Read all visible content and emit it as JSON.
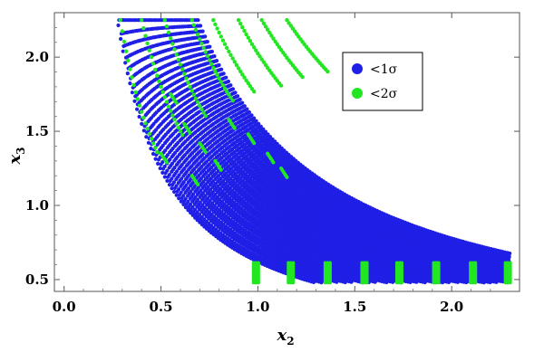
{
  "chart_data": {
    "type": "scatter",
    "xlabel": {
      "main": "x",
      "sub": "2"
    },
    "ylabel": {
      "main": "x",
      "sub": "3"
    },
    "xlim": [
      -0.05,
      2.35
    ],
    "ylim": [
      0.42,
      2.3
    ],
    "x_ticks": [
      {
        "value": 0.0,
        "label": "0.0"
      },
      {
        "value": 0.5,
        "label": "0.5"
      },
      {
        "value": 1.0,
        "label": "1.0"
      },
      {
        "value": 1.5,
        "label": "1.5"
      },
      {
        "value": 2.0,
        "label": "2.0"
      }
    ],
    "y_ticks": [
      {
        "value": 0.5,
        "label": "0.5"
      },
      {
        "value": 1.0,
        "label": "1.0"
      },
      {
        "value": 1.5,
        "label": "1.5"
      },
      {
        "value": 2.0,
        "label": "2.0"
      }
    ],
    "grid": false,
    "legend": {
      "placement": "top-right",
      "entries": [
        {
          "label": "<1σ",
          "color": "#1f1fe6"
        },
        {
          "label": "<2σ",
          "color": "#22e622"
        }
      ]
    },
    "series": [
      {
        "color": "#1f1fe6",
        "description_points": "dense band of curves x3 ≈ k / x2, k from ~0.65 to ~1.5",
        "curve_constants": [
          0.62,
          0.68,
          0.74,
          0.8,
          0.86,
          0.92,
          0.98,
          1.04,
          1.1,
          1.16,
          1.22,
          1.28,
          1.34,
          1.4,
          1.46,
          1.52
        ],
        "x_range": [
          0.28,
          2.3
        ],
        "y_range": [
          0.48,
          2.25
        ]
      },
      {
        "color": "#22e622",
        "curve_starts_x": [
          0.29,
          0.4,
          0.52,
          0.66,
          0.77,
          0.9,
          1.02,
          1.15
        ],
        "curve_constant_offset": 0.0,
        "vertical_bars_x": [
          0.99,
          1.17,
          1.36,
          1.55,
          1.73,
          1.92,
          2.11,
          2.29
        ],
        "vertical_bars_y": [
          0.48,
          0.62
        ]
      }
    ]
  }
}
